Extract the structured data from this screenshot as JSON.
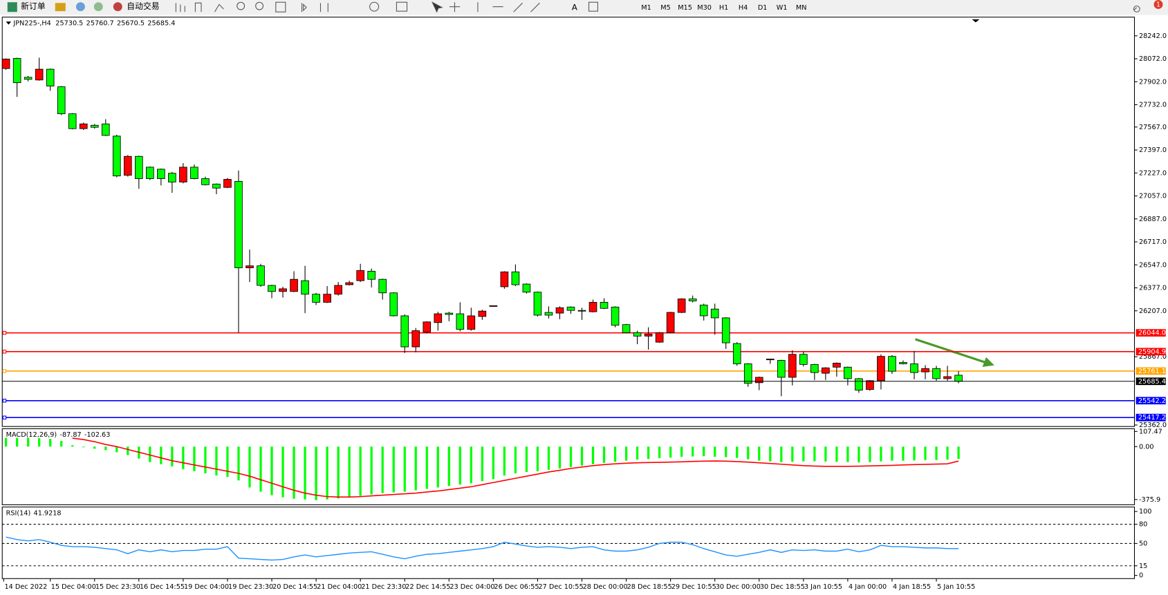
{
  "toolbar": {
    "buttons": [
      "新订单",
      "自动交易"
    ],
    "timeframes": [
      "M1",
      "M5",
      "M15",
      "M30",
      "H1",
      "H4",
      "D1",
      "W1",
      "MN"
    ],
    "notifications": 1
  },
  "chart_data": [
    {
      "type": "candlestick",
      "title": "JPN225-,H4",
      "colors": {
        "up": "#ff0000",
        "down": "#00ff00"
      },
      "open": [
        28000,
        28075,
        27935,
        27915,
        27995,
        27865,
        27665,
        27555,
        27580,
        27590,
        27500,
        27210,
        27350,
        27270,
        27255,
        27225,
        27160,
        27270,
        27185,
        27145,
        27120,
        27165,
        26525,
        26540,
        26395,
        26350,
        26350,
        26430,
        26330,
        26270,
        26330,
        26400,
        26430,
        26500,
        26440,
        26340,
        26170,
        25940,
        26050,
        26120,
        26190,
        26185,
        26070,
        26165,
        26240,
        26385,
        26495,
        26405,
        26345,
        26195,
        26190,
        26235,
        26210,
        26200,
        26270,
        26235,
        26105,
        26045,
        26020,
        25975,
        26045,
        26195,
        26295,
        26250,
        26220,
        26155,
        25965,
        25815,
        25675,
        25845,
        25840,
        25715,
        25885,
        25810,
        25745,
        25790,
        25790,
        25705,
        25625,
        25690,
        25870,
        25825,
        25815,
        25755,
        25780,
        25705,
        25730.5
      ],
      "high": [
        28075,
        28080,
        27945,
        28080,
        28000,
        27870,
        27670,
        27600,
        27590,
        27625,
        27510,
        27360,
        27355,
        27275,
        27260,
        27235,
        27300,
        27290,
        27200,
        27150,
        27190,
        27245,
        26660,
        26555,
        26400,
        26385,
        26500,
        26540,
        26340,
        26390,
        26420,
        26430,
        26555,
        26520,
        26445,
        26345,
        26180,
        26080,
        26130,
        26200,
        26200,
        26270,
        26230,
        26215,
        26245,
        26500,
        26550,
        26410,
        26350,
        26240,
        26240,
        26240,
        26230,
        26290,
        26300,
        26240,
        26110,
        26060,
        26085,
        26050,
        26200,
        26300,
        26320,
        26260,
        26260,
        26160,
        25975,
        25820,
        25720,
        25850,
        25845,
        25915,
        25905,
        25815,
        25790,
        25825,
        25795,
        25710,
        25695,
        25885,
        25880,
        25840,
        25910,
        25805,
        25800,
        25800,
        25760.7
      ],
      "low": [
        27990,
        27790,
        27905,
        27910,
        27835,
        27655,
        27550,
        27545,
        27555,
        27500,
        27195,
        27200,
        27110,
        27175,
        27135,
        27080,
        27150,
        27180,
        27135,
        27070,
        27115,
        26045,
        26420,
        26385,
        26300,
        26305,
        26345,
        26190,
        26250,
        26265,
        26320,
        26395,
        26420,
        26380,
        26290,
        26165,
        25895,
        25900,
        26040,
        26060,
        26130,
        26055,
        26060,
        26140,
        26240,
        26370,
        26390,
        26335,
        26165,
        26150,
        26145,
        26185,
        26140,
        26195,
        26220,
        26085,
        26040,
        25960,
        25920,
        25970,
        26040,
        26190,
        26270,
        26135,
        26030,
        25925,
        25800,
        25645,
        25620,
        25815,
        25575,
        25655,
        25795,
        25695,
        25695,
        25720,
        25655,
        25600,
        25615,
        25625,
        25740,
        25810,
        25700,
        25700,
        25690,
        25690,
        25670.5
      ],
      "close": [
        28070,
        27895,
        27920,
        27995,
        27870,
        27665,
        27555,
        27590,
        27565,
        27505,
        27205,
        27350,
        27185,
        27185,
        27185,
        27160,
        27270,
        27185,
        27140,
        27115,
        27180,
        26525,
        26540,
        26395,
        26350,
        26370,
        26440,
        26330,
        26270,
        26330,
        26395,
        26415,
        26505,
        26440,
        26340,
        26170,
        25940,
        26060,
        26125,
        26185,
        26180,
        26070,
        26170,
        26205,
        26245,
        26495,
        26400,
        26345,
        26175,
        26175,
        26230,
        26210,
        26205,
        26270,
        26225,
        26100,
        26045,
        26020,
        26035,
        26045,
        26195,
        26295,
        26280,
        26170,
        26155,
        25970,
        25815,
        25670,
        25715,
        25850,
        25715,
        25885,
        25810,
        25750,
        25785,
        25820,
        25705,
        25620,
        25690,
        25870,
        25760,
        25815,
        25750,
        25780,
        25705,
        25720,
        25685.4
      ],
      "levels": [
        {
          "value": 26044.0,
          "label": "26044.0",
          "color": "#ff0000"
        },
        {
          "value": 25904.9,
          "label": "25904.9",
          "color": "#ff0000"
        },
        {
          "value": 25761.1,
          "label": "25761.1",
          "color": "#ffa500"
        },
        {
          "value": 25542.2,
          "label": "25542.2",
          "color": "#0000ff"
        },
        {
          "value": 25417.2,
          "label": "25417.2",
          "color": "#0000ff"
        }
      ],
      "ylim": [
        25351,
        28380
      ],
      "yticks": [
        {
          "value": 28242,
          "label": "28242.0"
        },
        {
          "value": 28072,
          "label": "28072.0"
        },
        {
          "value": 27902,
          "label": "27902.0"
        },
        {
          "value": 27732,
          "label": "27732.0"
        },
        {
          "value": 27567,
          "label": "27567.0"
        },
        {
          "value": 27397,
          "label": "27397.0"
        },
        {
          "value": 27227,
          "label": "27227.0"
        },
        {
          "value": 27057,
          "label": "27057.0"
        },
        {
          "value": 26887,
          "label": "26887.0"
        },
        {
          "value": 26717,
          "label": "26717.0"
        },
        {
          "value": 26547,
          "label": "26547.0"
        },
        {
          "value": 26377,
          "label": "26377.0"
        },
        {
          "value": 26207,
          "label": "26207.0"
        },
        {
          "value": 25867,
          "label": "25867.0"
        },
        {
          "value": 25362,
          "label": "25362.0"
        }
      ],
      "x_labels": [
        "14 Dec 2022",
        "15 Dec 04:00",
        "15 Dec 23:30",
        "16 Dec 14:55",
        "19 Dec 04:00",
        "19 Dec 23:30",
        "20 Dec 14:55",
        "21 Dec 04:00",
        "21 Dec 23:30",
        "22 Dec 14:55",
        "23 Dec 04:00",
        "26 Dec 06:55",
        "27 Dec 10:55",
        "28 Dec 00:00",
        "28 Dec 18:55",
        "29 Dec 10:55",
        "30 Dec 00:00",
        "30 Dec 18:55",
        "3 Jan 10:55",
        "4 Jan 00:00",
        "4 Jan 18:55",
        "5 Jan 10:55"
      ]
    },
    {
      "type": "macd",
      "title": "MACD(12,26,9)",
      "histogram": {
        "color": "#00ff00",
        "values": [
          62,
          62,
          62,
          60,
          55,
          40,
          10,
          -5,
          -15,
          -25,
          -40,
          -60,
          -85,
          -110,
          -125,
          -140,
          -160,
          -175,
          -190,
          -205,
          -215,
          -240,
          -290,
          -320,
          -345,
          -360,
          -370,
          -375,
          -380,
          -375,
          -368,
          -360,
          -350,
          -340,
          -330,
          -325,
          -320,
          -310,
          -300,
          -290,
          -280,
          -270,
          -260,
          -245,
          -230,
          -205,
          -190,
          -180,
          -175,
          -165,
          -155,
          -145,
          -135,
          -125,
          -115,
          -108,
          -100,
          -92,
          -88,
          -82,
          -78,
          -72,
          -70,
          -68,
          -72,
          -75,
          -80,
          -90,
          -100,
          -105,
          -110,
          -108,
          -105,
          -104,
          -106,
          -108,
          -110,
          -112,
          -110,
          -105,
          -100,
          -100,
          -98,
          -95,
          -95,
          -92,
          -87.87
        ]
      },
      "signal": {
        "color": "#ff0000",
        "values": [
          null,
          null,
          null,
          null,
          null,
          null,
          60,
          50,
          35,
          15,
          0,
          -20,
          -40,
          -60,
          -80,
          -100,
          -115,
          -130,
          -145,
          -160,
          -175,
          -190,
          -210,
          -235,
          -260,
          -285,
          -310,
          -330,
          -345,
          -355,
          -358,
          -358,
          -355,
          -350,
          -345,
          -340,
          -335,
          -330,
          -322,
          -315,
          -305,
          -295,
          -285,
          -270,
          -255,
          -240,
          -225,
          -210,
          -195,
          -180,
          -168,
          -155,
          -145,
          -135,
          -128,
          -122,
          -118,
          -115,
          -113,
          -112,
          -110,
          -108,
          -105,
          -103,
          -102,
          -103,
          -106,
          -110,
          -115,
          -120,
          -125,
          -130,
          -135,
          -138,
          -140,
          -140,
          -140,
          -139,
          -137,
          -135,
          -133,
          -130,
          -128,
          -126,
          -124,
          -122,
          -102.63
        ]
      },
      "ylim": [
        -413,
        127
      ],
      "yticks": [
        107.47,
        {
          "value": 0,
          "label": "0.00"
        },
        -375.9
      ]
    },
    {
      "type": "rsi",
      "title": "RSI(14)",
      "color": "#1e90ff",
      "values": [
        60,
        56,
        54,
        56,
        52,
        47,
        45,
        45,
        44,
        42,
        40,
        34,
        40,
        37,
        40,
        37,
        39,
        39,
        41,
        41,
        45,
        27,
        26,
        25,
        24,
        25,
        29,
        32,
        29,
        31,
        33,
        35,
        36,
        37,
        33,
        29,
        26,
        30,
        33,
        34,
        36,
        38,
        40,
        42,
        45,
        52,
        49,
        46,
        44,
        45,
        44,
        42,
        44,
        45,
        40,
        38,
        38,
        40,
        44,
        50,
        52,
        52,
        48,
        42,
        37,
        32,
        30,
        33,
        36,
        40,
        36,
        40,
        39,
        40,
        38,
        38,
        41,
        37,
        40,
        47,
        45,
        45,
        44,
        43,
        43,
        42,
        41.9218
      ],
      "levels": [
        80,
        50,
        15
      ],
      "ylim": [
        -5,
        107
      ],
      "yticks": [
        100,
        80,
        50,
        15,
        0
      ]
    }
  ]
}
